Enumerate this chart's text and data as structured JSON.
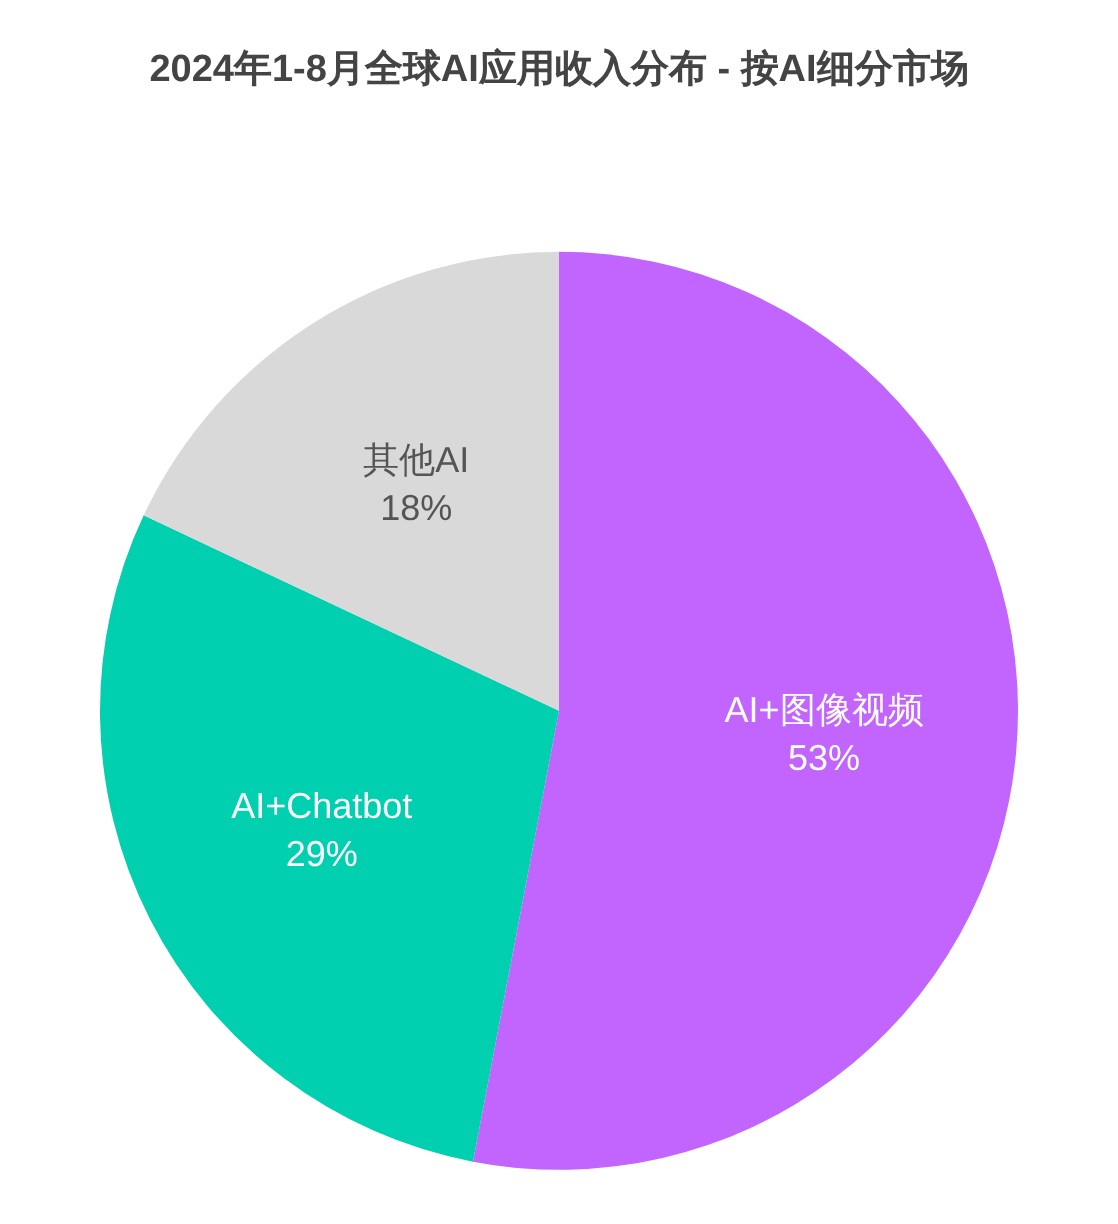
{
  "chart_data": {
    "type": "pie",
    "title": "2024年1-8月全球AI应用收入分布 - 按AI细分市场",
    "categories": [
      "AI+图像视频",
      "AI+Chatbot",
      "其他AI"
    ],
    "values": [
      53,
      29,
      18
    ],
    "colors": [
      "#c264fe",
      "#00cfb0",
      "#d9d9d9"
    ],
    "value_labels": [
      "53%",
      "29%",
      "18%"
    ],
    "legend": false
  }
}
